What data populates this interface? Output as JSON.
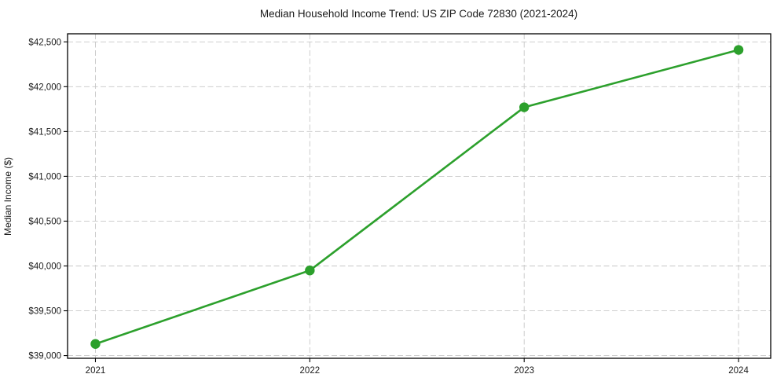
{
  "chart_data": {
    "type": "line",
    "title": "Median Household Income Trend: US ZIP Code 72830 (2021-2024)",
    "xlabel": "",
    "ylabel": "Median Income ($)",
    "x": [
      2021,
      2022,
      2023,
      2024
    ],
    "xtick_labels": [
      "2021",
      "2022",
      "2023",
      "2024"
    ],
    "values": [
      39130,
      39950,
      41770,
      42410
    ],
    "yticks": [
      39000,
      39500,
      40000,
      40500,
      41000,
      41500,
      42000,
      42500
    ],
    "ytick_labels": [
      "$39,000",
      "$39,500",
      "$40,000",
      "$40,500",
      "$41,000",
      "$41,500",
      "$42,000",
      "$42,500"
    ],
    "xlim": [
      2020.87,
      2024.15
    ],
    "ylim": [
      38970,
      42590
    ],
    "grid": true,
    "grid_style": "dashed",
    "legend": false,
    "marker": "circle",
    "colors": {
      "line": "#2ca02c",
      "marker": "#2ca02c",
      "grid": "#c7c7c7",
      "axis": "#000000",
      "text": "#1a1a1a",
      "background": "#ffffff"
    }
  }
}
